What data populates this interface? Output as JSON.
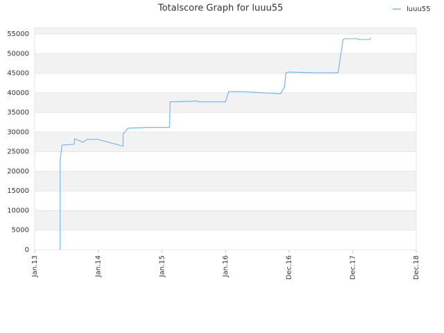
{
  "chart_data": {
    "type": "line",
    "title": "Totalscore Graph for luuu55",
    "series": [
      {
        "name": "luuu55",
        "color": "#7cb5ec",
        "x": [
          0.4,
          0.4,
          0.43,
          0.62,
          0.63,
          0.76,
          0.83,
          0.91,
          0.98,
          1.39,
          1.39,
          1.47,
          1.8,
          2.12,
          2.13,
          2.56,
          2.59,
          3.0,
          3.05,
          3.27,
          3.49,
          3.87,
          3.93,
          3.95,
          3.98,
          4.42,
          4.77,
          4.85,
          4.88,
          5.07,
          5.11,
          5.27,
          5.29
        ],
        "values": [
          0,
          22600,
          26700,
          26900,
          28300,
          27400,
          28200,
          28100,
          28200,
          26400,
          29500,
          31000,
          31200,
          31200,
          37700,
          37900,
          37700,
          37700,
          40300,
          40300,
          40100,
          39800,
          41600,
          45100,
          45300,
          45100,
          45100,
          53600,
          53800,
          53800,
          53600,
          53600,
          54000
        ]
      }
    ],
    "xlim": [
      0,
      6
    ],
    "xticks": [
      {
        "value": 0,
        "label": "Jan.13"
      },
      {
        "value": 1,
        "label": "Jan.14"
      },
      {
        "value": 2,
        "label": "Jan.15"
      },
      {
        "value": 3,
        "label": "Jan.16"
      },
      {
        "value": 4,
        "label": "Dec.16"
      },
      {
        "value": 5,
        "label": "Dec.17"
      },
      {
        "value": 6,
        "label": "Dec.18"
      }
    ],
    "ylim": [
      0,
      56600
    ],
    "yticks": [
      0,
      5000,
      10000,
      15000,
      20000,
      25000,
      30000,
      35000,
      40000,
      45000,
      50000,
      55000
    ],
    "grid": true,
    "legend": "top-right"
  }
}
